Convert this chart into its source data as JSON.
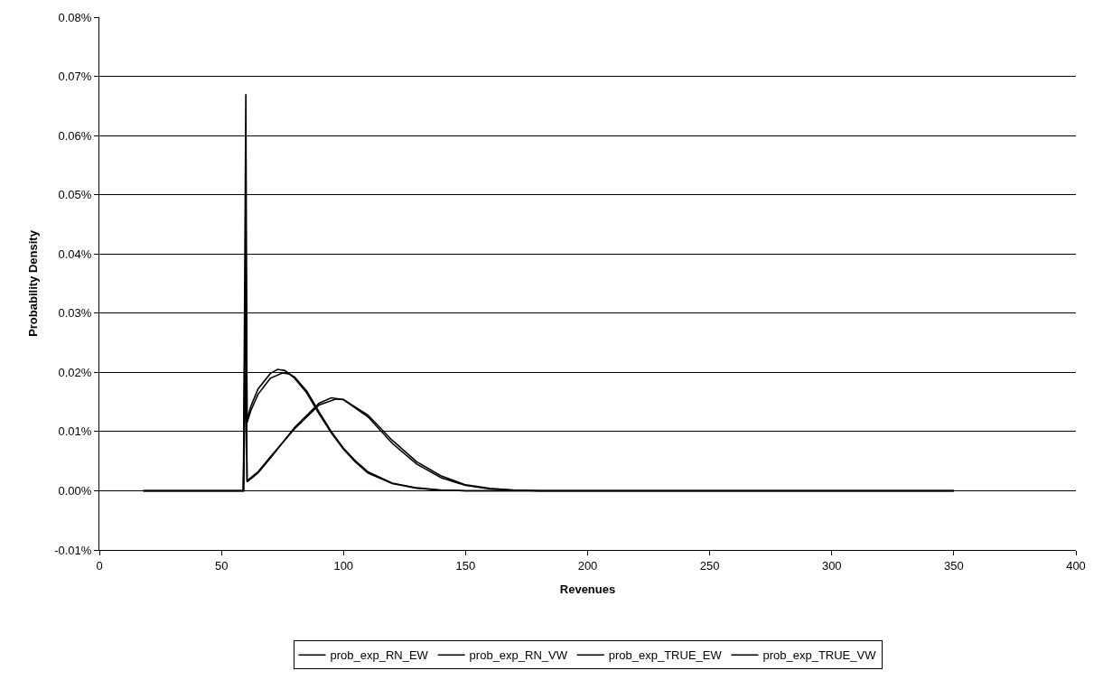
{
  "chart_data": {
    "type": "line",
    "xlabel": "Revenues",
    "ylabel": "Probability Density",
    "xlim": [
      0,
      400
    ],
    "xticks": [
      0,
      50,
      100,
      150,
      200,
      250,
      300,
      350,
      400
    ],
    "ylim": [
      -0.01,
      0.08
    ],
    "yticks": [
      {
        "value": -0.01,
        "label": "-0.01%"
      },
      {
        "value": 0,
        "label": "0.00%"
      },
      {
        "value": 0.01,
        "label": "0.01%"
      },
      {
        "value": 0.02,
        "label": "0.02%"
      },
      {
        "value": 0.03,
        "label": "0.03%"
      },
      {
        "value": 0.04,
        "label": "0.04%"
      },
      {
        "value": 0.05,
        "label": "0.05%"
      },
      {
        "value": 0.06,
        "label": "0.06%"
      },
      {
        "value": 0.07,
        "label": "0.07%"
      },
      {
        "value": 0.08,
        "label": "0.08%"
      }
    ],
    "grid": "y",
    "legend": "bottom",
    "marker": "none",
    "line_style": "solid",
    "series": [
      {
        "name": "prob_exp_RN_EW",
        "color": "#000000",
        "x": [
          18,
          59,
          60,
          60.5,
          62,
          65,
          70,
          73,
          76,
          80,
          85,
          90,
          95,
          100,
          105,
          110,
          120,
          130,
          140,
          150,
          170,
          350
        ],
        "values": [
          0,
          0,
          0.067,
          0.012,
          0.0142,
          0.0172,
          0.0198,
          0.0205,
          0.0203,
          0.019,
          0.0165,
          0.013,
          0.0098,
          0.007,
          0.0048,
          0.003,
          0.0012,
          0.0004,
          0.0001,
          0,
          0,
          0
        ]
      },
      {
        "name": "prob_exp_RN_VW",
        "color": "#000000",
        "x": [
          18,
          59,
          60,
          60.5,
          62,
          65,
          70,
          75,
          78,
          80,
          85,
          90,
          95,
          100,
          105,
          110,
          120,
          130,
          140,
          150,
          170,
          350
        ],
        "values": [
          0,
          0,
          0.044,
          0.0115,
          0.0135,
          0.0163,
          0.019,
          0.0199,
          0.0197,
          0.0192,
          0.0168,
          0.0133,
          0.01,
          0.0072,
          0.005,
          0.0032,
          0.0013,
          0.0005,
          0.0001,
          0,
          0,
          0
        ]
      },
      {
        "name": "prob_exp_TRUE_EW",
        "color": "#000000",
        "x": [
          18,
          59,
          60,
          60.5,
          65,
          70,
          80,
          90,
          95,
          100,
          110,
          120,
          130,
          140,
          150,
          160,
          170,
          180,
          350
        ],
        "values": [
          0,
          0,
          0.037,
          0.0015,
          0.003,
          0.0055,
          0.0107,
          0.0148,
          0.0157,
          0.0154,
          0.0125,
          0.008,
          0.0045,
          0.0022,
          0.0009,
          0.0003,
          0.0001,
          0,
          0
        ]
      },
      {
        "name": "prob_exp_TRUE_VW",
        "color": "#000000",
        "x": [
          18,
          59,
          60,
          60.5,
          65,
          70,
          80,
          90,
          97,
          100,
          110,
          120,
          130,
          140,
          150,
          160,
          170,
          180,
          350
        ],
        "values": [
          0,
          0,
          0.02,
          0.0017,
          0.0032,
          0.0057,
          0.0105,
          0.0145,
          0.0155,
          0.0154,
          0.0128,
          0.0085,
          0.0049,
          0.0025,
          0.001,
          0.0004,
          0.0001,
          0,
          0
        ]
      }
    ]
  }
}
